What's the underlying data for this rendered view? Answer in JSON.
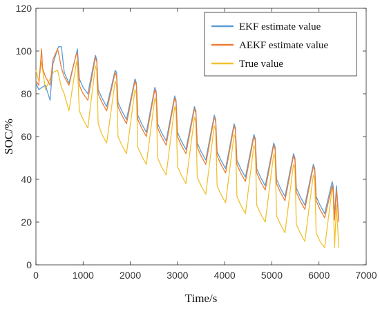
{
  "chart_data": {
    "type": "line",
    "title": "",
    "xlabel": "Time/s",
    "ylabel": "SOC/%",
    "xlim": [
      0,
      7000
    ],
    "ylim": [
      0,
      120
    ],
    "xticks": [
      0,
      1000,
      2000,
      3000,
      4000,
      5000,
      6000,
      7000
    ],
    "yticks": [
      0,
      20,
      40,
      60,
      80,
      100,
      120
    ],
    "grid": false,
    "legend_position": "top-right",
    "series": [
      {
        "name": "EKF estimate value",
        "color": "#5b9bd5",
        "x": [
          0,
          60,
          200,
          300,
          360,
          460,
          480,
          540,
          600,
          700,
          860,
          880,
          920,
          1000,
          1100,
          1260,
          1290,
          1320,
          1400,
          1500,
          1680,
          1710,
          1740,
          1820,
          1920,
          2100,
          2130,
          2160,
          2240,
          2340,
          2520,
          2550,
          2580,
          2660,
          2760,
          2940,
          2970,
          3000,
          3080,
          3180,
          3360,
          3390,
          3420,
          3500,
          3600,
          3780,
          3810,
          3840,
          3920,
          4020,
          4200,
          4230,
          4260,
          4340,
          4440,
          4620,
          4650,
          4680,
          4760,
          4860,
          5040,
          5070,
          5100,
          5180,
          5280,
          5460,
          5490,
          5520,
          5600,
          5700,
          5880,
          5910,
          5940,
          6020,
          6120,
          6280,
          6300,
          6330,
          6370,
          6420
        ],
        "values": [
          85,
          82,
          84,
          77,
          94,
          101,
          102,
          102,
          90,
          85,
          99,
          101,
          87,
          83,
          80,
          98,
          96,
          82,
          78,
          74,
          91,
          90,
          76,
          72,
          68,
          87,
          85,
          70,
          66,
          62,
          83,
          81,
          66,
          62,
          58,
          79,
          77,
          62,
          58,
          54,
          74,
          72,
          57,
          53,
          49,
          70,
          68,
          53,
          49,
          45,
          66,
          64,
          49,
          45,
          41,
          61,
          59,
          45,
          41,
          37,
          57,
          55,
          40,
          36,
          32,
          52,
          50,
          36,
          32,
          28,
          47,
          45,
          32,
          28,
          24,
          39,
          37,
          23,
          37,
          21
        ]
      },
      {
        "name": "AEKF estimate value",
        "color": "#ed7d31",
        "x": [
          0,
          60,
          120,
          140,
          200,
          300,
          360,
          460,
          480,
          540,
          600,
          700,
          860,
          880,
          920,
          1000,
          1100,
          1260,
          1290,
          1320,
          1400,
          1500,
          1680,
          1710,
          1740,
          1820,
          1920,
          2100,
          2130,
          2160,
          2240,
          2340,
          2520,
          2550,
          2580,
          2660,
          2760,
          2940,
          2970,
          3000,
          3080,
          3180,
          3360,
          3390,
          3420,
          3500,
          3600,
          3780,
          3810,
          3840,
          3920,
          4020,
          4200,
          4230,
          4260,
          4340,
          4440,
          4620,
          4650,
          4680,
          4760,
          4860,
          5040,
          5070,
          5100,
          5180,
          5280,
          5460,
          5490,
          5520,
          5600,
          5700,
          5880,
          5910,
          5940,
          6020,
          6120,
          6280,
          6300,
          6330,
          6370,
          6420
        ],
        "values": [
          86,
          84,
          101,
          92,
          88,
          84,
          96,
          101,
          99,
          92,
          88,
          84,
          99,
          98,
          84,
          80,
          77,
          97,
          95,
          80,
          76,
          72,
          90,
          88,
          74,
          70,
          66,
          86,
          84,
          68,
          64,
          60,
          82,
          80,
          64,
          60,
          56,
          78,
          76,
          60,
          56,
          52,
          73,
          71,
          55,
          51,
          47,
          69,
          67,
          51,
          47,
          43,
          65,
          63,
          47,
          43,
          39,
          60,
          58,
          43,
          39,
          35,
          56,
          54,
          38,
          34,
          30,
          51,
          49,
          34,
          30,
          26,
          46,
          44,
          30,
          26,
          22,
          37,
          35,
          21,
          35,
          20
        ]
      },
      {
        "name": "True value",
        "color": "#f2c12e",
        "x": [
          0,
          60,
          120,
          200,
          300,
          360,
          460,
          480,
          540,
          600,
          700,
          860,
          880,
          920,
          1000,
          1100,
          1260,
          1290,
          1320,
          1400,
          1500,
          1680,
          1710,
          1740,
          1820,
          1920,
          2100,
          2130,
          2160,
          2240,
          2340,
          2520,
          2550,
          2580,
          2660,
          2760,
          2940,
          2970,
          3000,
          3080,
          3180,
          3360,
          3390,
          3420,
          3500,
          3600,
          3780,
          3810,
          3840,
          3920,
          4020,
          4200,
          4230,
          4260,
          4340,
          4440,
          4620,
          4650,
          4680,
          4760,
          4860,
          5040,
          5070,
          5100,
          5180,
          5280,
          5460,
          5490,
          5520,
          5600,
          5700,
          5880,
          5910,
          5940,
          6020,
          6120,
          6280,
          6300,
          6330,
          6370,
          6420
        ],
        "values": [
          91,
          86,
          95,
          82,
          87,
          90,
          91,
          89,
          83,
          80,
          72,
          95,
          93,
          72,
          68,
          64,
          93,
          91,
          66,
          61,
          57,
          86,
          84,
          60,
          56,
          52,
          82,
          80,
          55,
          51,
          47,
          78,
          76,
          50,
          46,
          42,
          74,
          72,
          46,
          42,
          38,
          69,
          67,
          41,
          37,
          33,
          65,
          63,
          37,
          33,
          29,
          61,
          59,
          32,
          28,
          24,
          56,
          54,
          28,
          24,
          20,
          52,
          50,
          23,
          19,
          15,
          47,
          45,
          19,
          15,
          11,
          42,
          40,
          15,
          11,
          8,
          36,
          34,
          8,
          28,
          8
        ]
      }
    ]
  }
}
